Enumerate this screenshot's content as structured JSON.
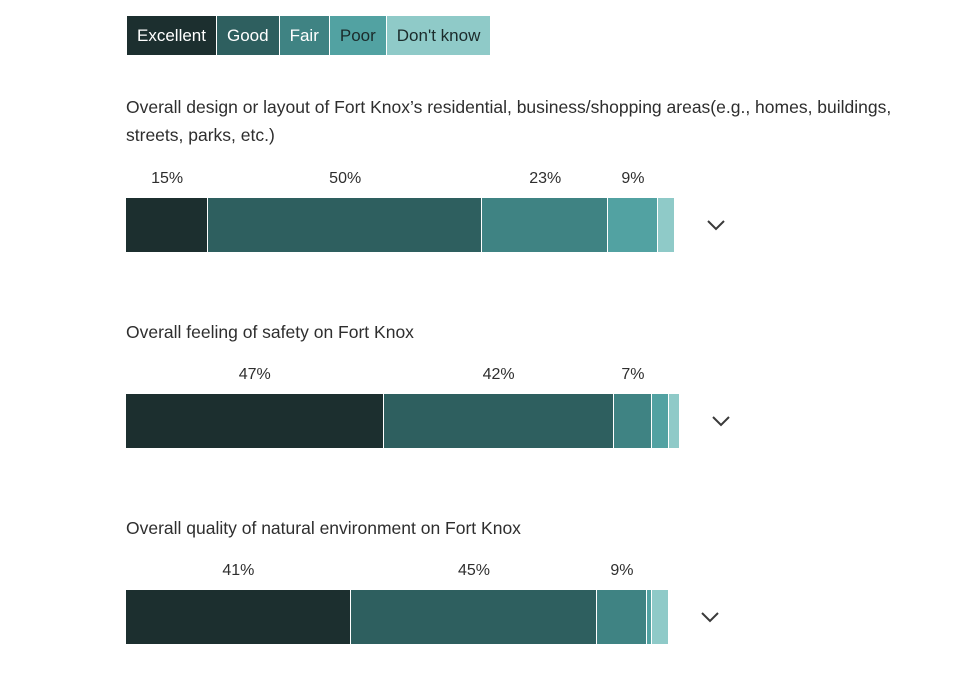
{
  "legend": [
    {
      "label": "Excellent",
      "color": "#1c2f2f",
      "text_color": "#ffffff"
    },
    {
      "label": "Good",
      "color": "#2e5f5f",
      "text_color": "#ffffff"
    },
    {
      "label": "Fair",
      "color": "#3f8383",
      "text_color": "#ffffff"
    },
    {
      "label": "Poor",
      "color": "#52a2a2",
      "text_color": "#1b2b2b"
    },
    {
      "label": "Don't know",
      "color": "#8fcac8",
      "text_color": "#1b2b2b"
    }
  ],
  "chart_data": {
    "type": "bar",
    "orientation": "horizontal-stacked",
    "series_names": [
      "Excellent",
      "Good",
      "Fair",
      "Poor",
      "Don't know"
    ],
    "questions": [
      {
        "label": "Overall design or layout of Fort Knox’s residential, business/shopping areas(e.g., homes, buildings, streets, parks, etc.)",
        "values": [
          15,
          50,
          23,
          9,
          3
        ],
        "labels": [
          "15%",
          "50%",
          "23%",
          "9%",
          ""
        ]
      },
      {
        "label": "Overall feeling of safety on Fort Knox",
        "values": [
          47,
          42,
          7,
          3,
          2
        ],
        "labels": [
          "47%",
          "42%",
          "7%",
          "",
          ""
        ]
      },
      {
        "label": "Overall quality of natural environment on Fort Knox",
        "values": [
          41,
          45,
          9,
          1,
          3
        ],
        "labels": [
          "41%",
          "45%",
          "9%",
          "",
          ""
        ]
      }
    ]
  }
}
